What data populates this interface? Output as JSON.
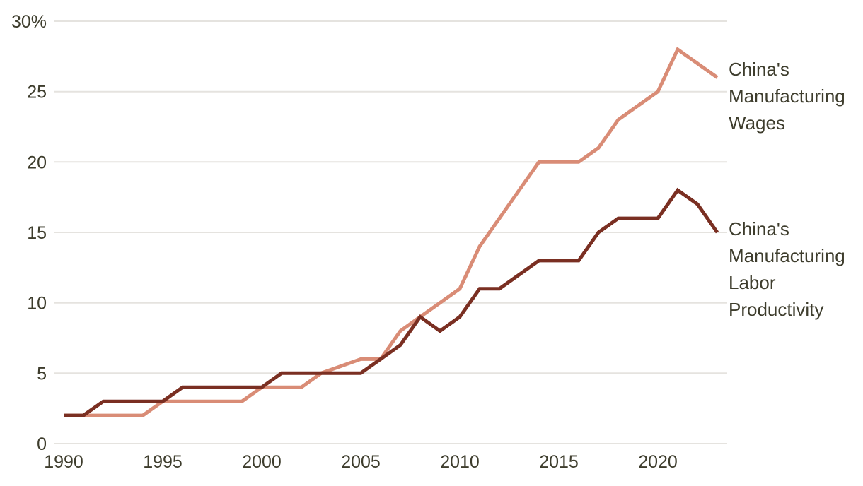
{
  "chart_data": {
    "type": "line",
    "title": "",
    "xlabel": "",
    "ylabel": "",
    "ylim": [
      0,
      30
    ],
    "xlim": [
      1990,
      2023
    ],
    "grid": "horizontal",
    "legend_position": "right-annotations",
    "yticks": [
      {
        "value": 0,
        "label": "0"
      },
      {
        "value": 5,
        "label": "5"
      },
      {
        "value": 10,
        "label": "10"
      },
      {
        "value": 15,
        "label": "15"
      },
      {
        "value": 20,
        "label": "20"
      },
      {
        "value": 25,
        "label": "25"
      },
      {
        "value": 30,
        "label": "30%"
      }
    ],
    "xticks": [
      {
        "value": 1990,
        "label": "1990"
      },
      {
        "value": 1995,
        "label": "1995"
      },
      {
        "value": 2000,
        "label": "2000"
      },
      {
        "value": 2005,
        "label": "2005"
      },
      {
        "value": 2010,
        "label": "2010"
      },
      {
        "value": 2015,
        "label": "2015"
      },
      {
        "value": 2020,
        "label": "2020"
      }
    ],
    "x": [
      1990,
      1991,
      1992,
      1993,
      1994,
      1995,
      1996,
      1997,
      1998,
      1999,
      2000,
      2001,
      2002,
      2003,
      2004,
      2005,
      2006,
      2007,
      2008,
      2009,
      2010,
      2011,
      2012,
      2013,
      2014,
      2015,
      2016,
      2017,
      2018,
      2019,
      2020,
      2021,
      2022,
      2023
    ],
    "series": [
      {
        "id": "wages-line",
        "name": "China's Manufacturing Wages",
        "color": "#D98C76",
        "values": [
          2,
          2,
          2,
          2,
          2,
          3,
          3,
          3,
          3,
          3,
          4,
          4,
          4,
          5,
          5.5,
          6,
          6,
          8,
          9,
          10,
          11,
          14,
          16,
          18,
          20,
          20,
          20,
          21,
          23,
          24,
          25,
          28,
          27,
          26
        ]
      },
      {
        "id": "productivity-line",
        "name": "China's Manufacturing Labor Productivity",
        "color": "#7A2F22",
        "values": [
          2,
          2,
          3,
          3,
          3,
          3,
          4,
          4,
          4,
          4,
          4,
          5,
          5,
          5,
          5,
          5,
          6,
          7,
          9,
          8,
          9,
          11,
          11,
          12,
          13,
          13,
          13,
          15,
          16,
          16,
          16,
          18,
          17,
          15
        ]
      }
    ]
  },
  "colors": {
    "background": "#FFFFFF",
    "gridline": "#E5E3DF",
    "axis_text": "#3E3D2D",
    "wages_line": "#D98C76",
    "productivity_line": "#7A2F22"
  }
}
